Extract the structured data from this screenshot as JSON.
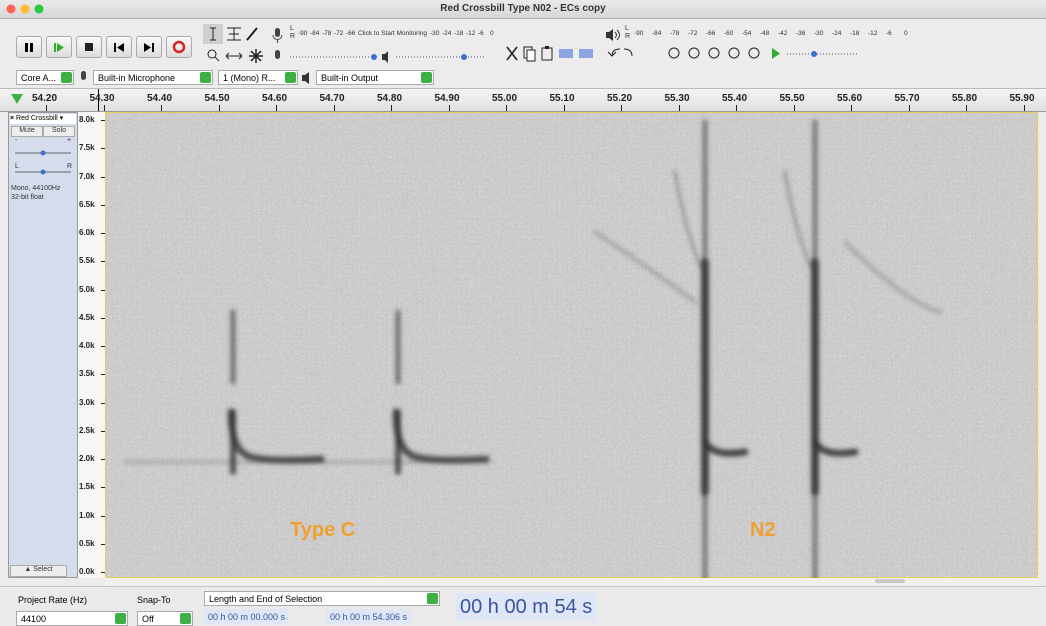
{
  "window": {
    "title": "Red Crossbill Type N02 - ECs copy"
  },
  "toolbar": {
    "record_meter": {
      "channels": [
        "L",
        "R"
      ],
      "scale": [
        "-90",
        "-84",
        "-78",
        "-72",
        "-66",
        "Click to Start Monitoring",
        "-30",
        "-24",
        "-18",
        "-12",
        "-6",
        "0"
      ]
    },
    "play_meter": {
      "channels": [
        "L",
        "R"
      ],
      "scale": [
        "-90",
        "-84",
        "-78",
        "-72",
        "-66",
        "-60",
        "-54",
        "-48",
        "-42",
        "-36",
        "-30",
        "-24",
        "-18",
        "-12",
        "-6",
        "0"
      ]
    }
  },
  "devices": {
    "host": "Core A...",
    "input": "Built-in Microphone",
    "channels": "1 (Mono) R...",
    "output": "Built-in Output"
  },
  "timeline": {
    "ticks": [
      "54.20",
      "54.30",
      "54.40",
      "54.50",
      "54.60",
      "54.70",
      "54.80",
      "54.90",
      "55.00",
      "55.10",
      "55.20",
      "55.30",
      "55.40",
      "55.50",
      "55.60",
      "55.70",
      "55.80",
      "55.90"
    ]
  },
  "track": {
    "name": "Red Crossbill",
    "mute": "Mute",
    "solo": "Solo",
    "gain": [
      "-",
      "+"
    ],
    "pan": [
      "L",
      "R"
    ],
    "format": [
      "Mono, 44100Hz",
      "32-bit float"
    ],
    "select": "Select",
    "freq_ticks": [
      "8.0k",
      "7.5k",
      "7.0k",
      "6.5k",
      "6.0k",
      "5.5k",
      "5.0k",
      "4.5k",
      "4.0k",
      "3.5k",
      "3.0k",
      "2.5k",
      "2.0k",
      "1.5k",
      "1.0k",
      "0.5k",
      "0.0k"
    ]
  },
  "annotations": [
    "Type C",
    "N2"
  ],
  "selection_bar": {
    "rate_label": "Project Rate (Hz)",
    "rate": "44100",
    "snap_label": "Snap-To",
    "snap": "Off",
    "mode": "Length and End of Selection",
    "start": "00 h 00 m 00.000 s",
    "end": "00 h 00 m 54.306 s",
    "time": "00 h 00 m 54 s"
  }
}
